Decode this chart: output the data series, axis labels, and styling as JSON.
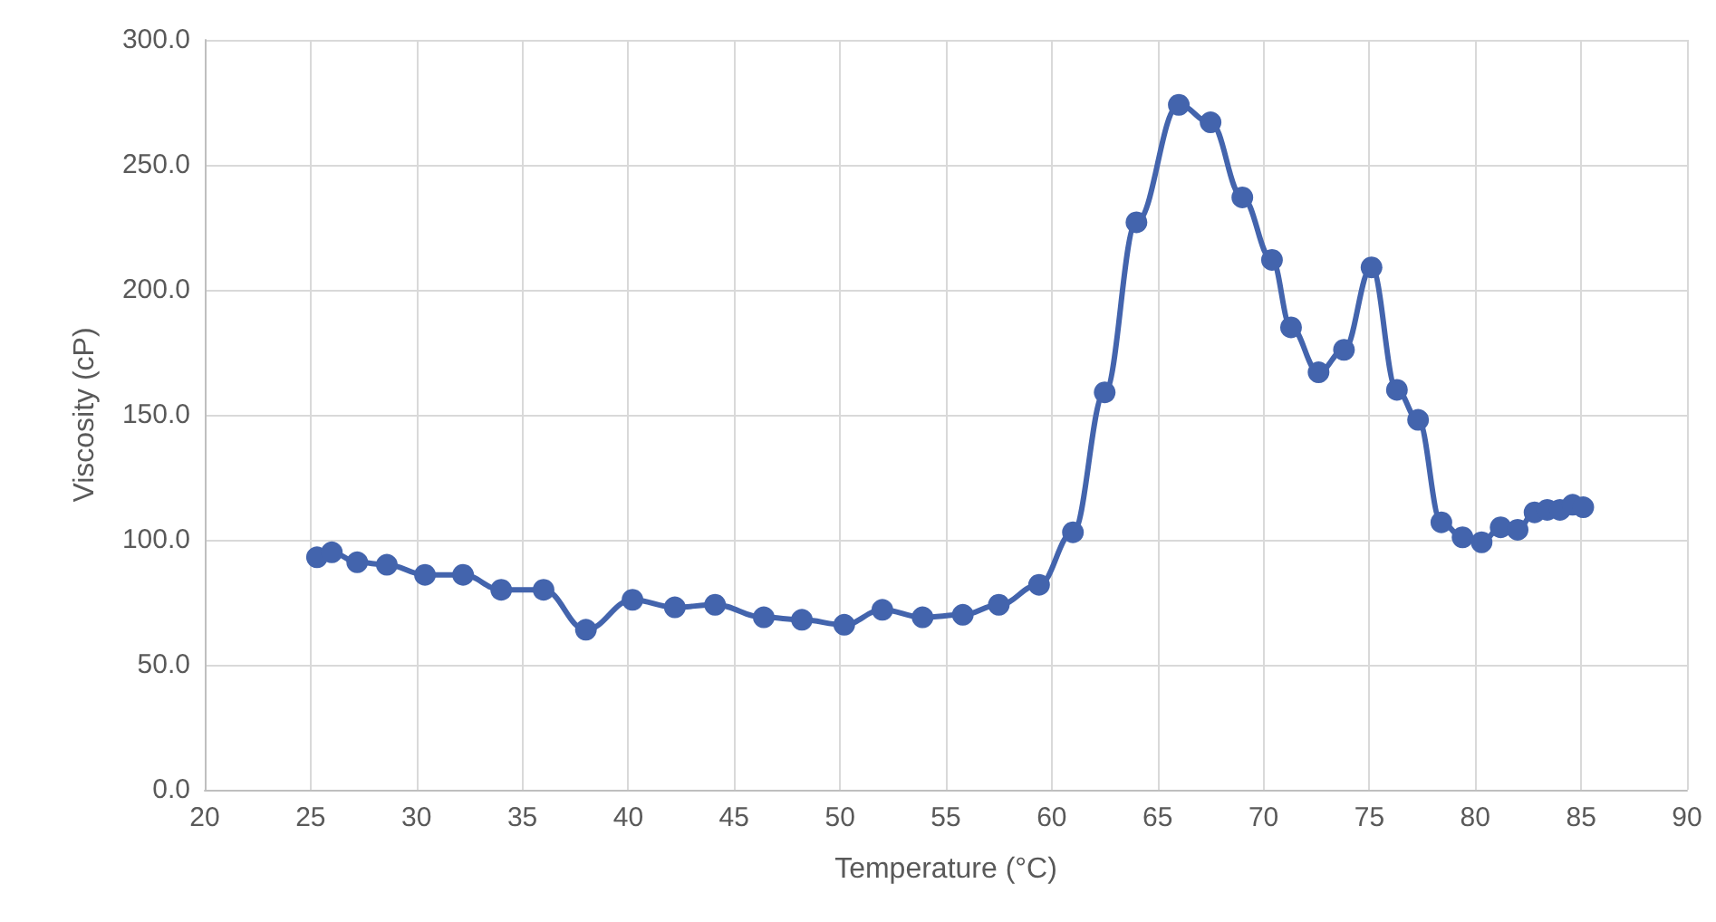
{
  "chart_data": {
    "type": "line",
    "xlabel": "Temperature (°C)",
    "ylabel": "Viscosity (cP)",
    "x": [
      25.3,
      26.0,
      27.2,
      28.6,
      30.4,
      32.2,
      34.0,
      36.0,
      38.0,
      40.2,
      42.2,
      44.1,
      46.4,
      48.2,
      50.2,
      52.0,
      53.9,
      55.8,
      57.5,
      59.4,
      61.0,
      62.5,
      64.0,
      66.0,
      67.5,
      69.0,
      70.4,
      71.3,
      72.6,
      73.8,
      75.1,
      76.3,
      77.3,
      78.4,
      79.4,
      80.3,
      81.2,
      82.0,
      82.8,
      83.4,
      84.0,
      84.6,
      85.1
    ],
    "series": [
      {
        "color": "#4364ad",
        "values": [
          93,
          95,
          91,
          90,
          86,
          86,
          80,
          80,
          64,
          76,
          73,
          74,
          69,
          68,
          66,
          72,
          69,
          70,
          74,
          82,
          103,
          159,
          227,
          274,
          267,
          237,
          212,
          185,
          167,
          176,
          209,
          160,
          148,
          107,
          101,
          99,
          105,
          104,
          111,
          112,
          112,
          114,
          113
        ]
      }
    ],
    "xlim": [
      20,
      90
    ],
    "xticks": [
      20,
      25,
      30,
      35,
      40,
      45,
      50,
      55,
      60,
      65,
      70,
      75,
      80,
      85,
      90
    ],
    "ylim": [
      0,
      300
    ],
    "yticks": [
      {
        "value": 0,
        "label": "0.0"
      },
      {
        "value": 50,
        "label": "50.0"
      },
      {
        "value": 100,
        "label": "100.0"
      },
      {
        "value": 150,
        "label": "150.0"
      },
      {
        "value": 200,
        "label": "200.0"
      },
      {
        "value": 250,
        "label": "250.0"
      },
      {
        "value": 300,
        "label": "300.0"
      }
    ],
    "grid": true,
    "marker": "circle",
    "line_style": "solid"
  }
}
